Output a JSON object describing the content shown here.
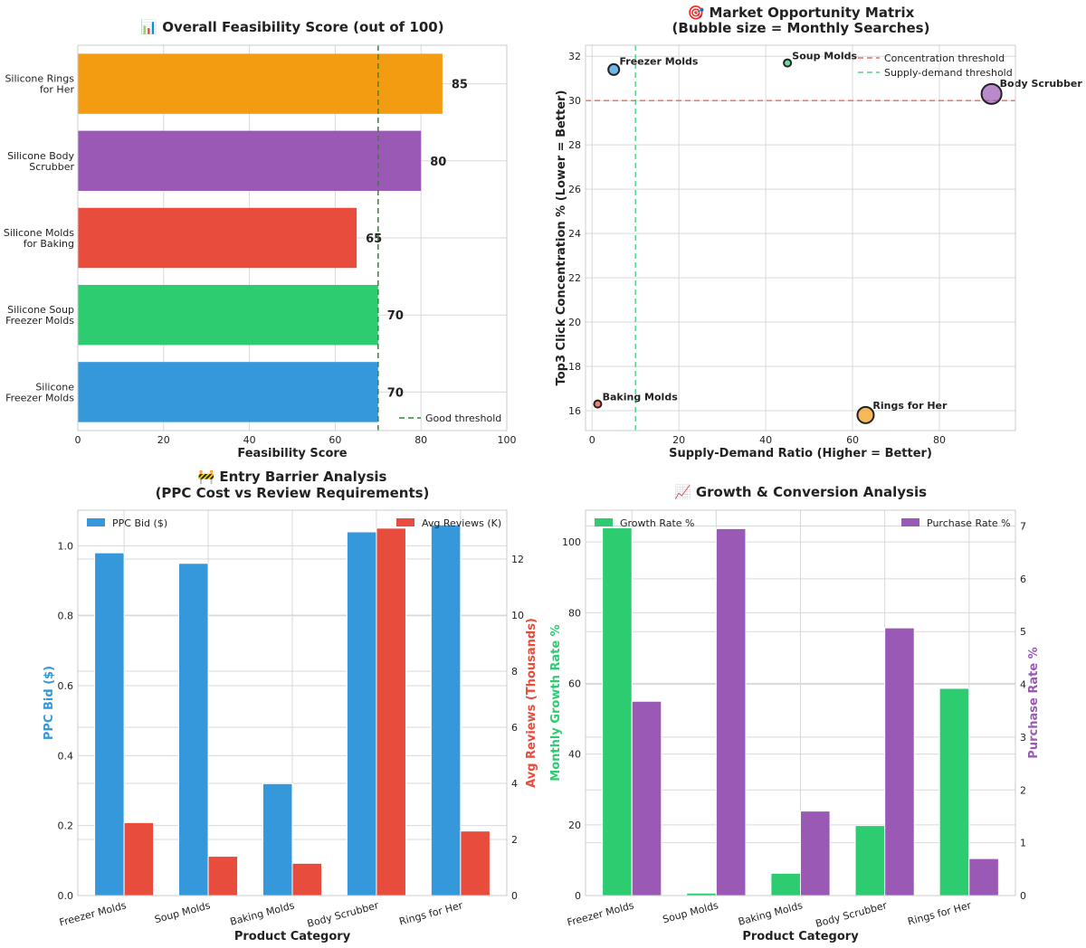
{
  "chart_data": [
    {
      "id": "feasibility",
      "type": "bar",
      "orientation": "horizontal",
      "title": "📊 Overall Feasibility Score (out of 100)",
      "xlabel": "Feasibility Score",
      "xlim": [
        0,
        100
      ],
      "xticks": [
        0,
        20,
        40,
        60,
        80,
        100
      ],
      "categories": [
        "Silicone\nFreezer Molds",
        "Silicone Soup\nFreezer Molds",
        "Silicone Molds\nfor Baking",
        "Silicone Body\nScrubber",
        "Silicone Rings\nfor Her"
      ],
      "values": [
        70,
        70,
        65,
        80,
        85
      ],
      "colors": [
        "#3498db",
        "#2ecc71",
        "#e74c3c",
        "#9b59b6",
        "#f39c12"
      ],
      "threshold": 70,
      "threshold_label": "Good threshold",
      "legend": "bottom-right"
    },
    {
      "id": "matrix",
      "type": "scatter",
      "title": "🎯 Market Opportunity Matrix\n(Bubble size = Monthly Searches)",
      "xlabel": "Supply-Demand Ratio (Higher = Better)",
      "ylabel": "Top3 Click Concentration % (Lower = Better)",
      "xlim": [
        -1.5,
        97.5
      ],
      "ylim": [
        15.1,
        32.5
      ],
      "xticks": [
        0,
        20,
        40,
        60,
        80
      ],
      "yticks": [
        16,
        18,
        20,
        22,
        24,
        26,
        28,
        30,
        32
      ],
      "points": [
        {
          "label": "Freezer Molds",
          "x": 5,
          "y": 31.4,
          "size": 6,
          "color": "#3498db"
        },
        {
          "label": "Soup Molds",
          "x": 45,
          "y": 31.7,
          "size": 4,
          "color": "#2ecc71"
        },
        {
          "label": "Baking Molds",
          "x": 1.3,
          "y": 16.3,
          "size": 4,
          "color": "#e74c3c"
        },
        {
          "label": "Body Scrubber",
          "x": 92,
          "y": 30.3,
          "size": 11,
          "color": "#9b59b6"
        },
        {
          "label": "Rings for Her",
          "x": 63,
          "y": 15.8,
          "size": 9,
          "color": "#f39c12"
        }
      ],
      "hline": 30,
      "hline_label": "Concentration threshold",
      "vline": 10,
      "vline_label": "Supply-demand threshold",
      "legend": "top-right"
    },
    {
      "id": "barrier",
      "type": "bar",
      "title": "🚧 Entry Barrier Analysis\n(PPC Cost vs Review Requirements)",
      "xlabel": "Product Category",
      "ylabel": "PPC Bid ($)",
      "ylabel2": "Avg Reviews (Thousands)",
      "categories": [
        "Freezer Molds",
        "Soup Molds",
        "Baking Molds",
        "Body Scrubber",
        "Rings for Her"
      ],
      "ylim": [
        0,
        1.102
      ],
      "yticks": [
        0.0,
        0.2,
        0.4,
        0.6,
        0.8,
        1.0
      ],
      "y2lim": [
        0,
        13.74
      ],
      "y2ticks": [
        0,
        2,
        4,
        6,
        8,
        10,
        12
      ],
      "series": [
        {
          "name": "PPC Bid ($)",
          "axis": "left",
          "values": [
            0.98,
            0.95,
            0.32,
            1.04,
            1.06
          ],
          "color": "#3498db"
        },
        {
          "name": "Avg Reviews (K)",
          "axis": "right",
          "values": [
            2.6,
            1.4,
            1.15,
            13.1,
            2.3
          ],
          "color": "#e74c3c"
        }
      ]
    },
    {
      "id": "growth",
      "type": "bar",
      "title": "📈 Growth & Conversion Analysis",
      "xlabel": "Product Category",
      "ylabel": "Monthly Growth Rate %",
      "ylabel2": "Purchase Rate %",
      "categories": [
        "Freezer Molds",
        "Soup Molds",
        "Baking Molds",
        "Body Scrubber",
        "Rings for Her"
      ],
      "ylim": [
        0,
        109
      ],
      "yticks": [
        0,
        20,
        40,
        60,
        80,
        100
      ],
      "y2lim": [
        0,
        7.3
      ],
      "y2ticks": [
        0,
        1,
        2,
        3,
        4,
        5,
        6,
        7
      ],
      "series": [
        {
          "name": "Growth Rate %",
          "axis": "left",
          "values": [
            104,
            0.7,
            6.3,
            19.8,
            58.6
          ],
          "color": "#2ecc71"
        },
        {
          "name": "Purchase Rate %",
          "axis": "right",
          "values": [
            3.68,
            6.95,
            1.6,
            5.07,
            0.7
          ],
          "color": "#9b59b6"
        }
      ]
    }
  ]
}
